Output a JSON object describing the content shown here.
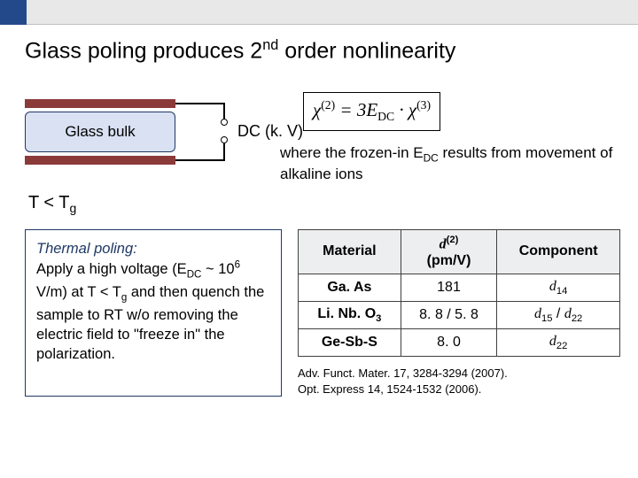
{
  "header": {
    "blue": "#23498b",
    "gray": "#e8e8e8"
  },
  "title_html": "Glass poling produces 2<sup>nd</sup> order nonlinearity",
  "diagram": {
    "glass_label": "Glass bulk",
    "dc_label": "DC (k. V)",
    "t_label_html": "T < T<sub>g</sub>",
    "electrode_color": "#8b3a3a",
    "glass_fill": "#d9e1f2",
    "glass_border": "#1f3864"
  },
  "equation_html": "χ<sup>(2)</sup> = 3E<sub>DC</sub> · χ<sup>(3)</sup>",
  "caption_html": "where the frozen-in E<sub>DC</sub> results from movement of alkaline ions",
  "thermal": {
    "title": "Thermal poling:",
    "body_html": "Apply a high voltage (E<sub>DC</sub> ~ 10<sup>6</sup> V/m) at T < T<sub>g</sub> and then quench the sample to RT w/o removing the electric field to \"freeze in\" the polarization."
  },
  "table": {
    "columns_html": [
      "Material",
      "<span class=\"d-italic\">d</span><sup>(2)</sup><br>(pm/V)",
      "Component"
    ],
    "rows": [
      {
        "material_html": "Ga. As",
        "d": "181",
        "component_html": "<span class=\"d-italic\">d</span><sub>14</sub>"
      },
      {
        "material_html": "Li. Nb. O<sub>3</sub>",
        "d": "8. 8 / 5. 8",
        "component_html": "<span class=\"d-italic\">d</span><sub>15</sub> / <span class=\"d-italic\">d</span><sub>22</sub>"
      },
      {
        "material_html": "Ge-Sb-S",
        "d": "8. 0",
        "component_html": "<span class=\"d-italic\">d</span><sub>22</sub>"
      }
    ]
  },
  "refs": [
    "Adv. Funct. Mater. 17, 3284-3294 (2007).",
    "Opt. Express 14, 1524-1532 (2006)."
  ]
}
